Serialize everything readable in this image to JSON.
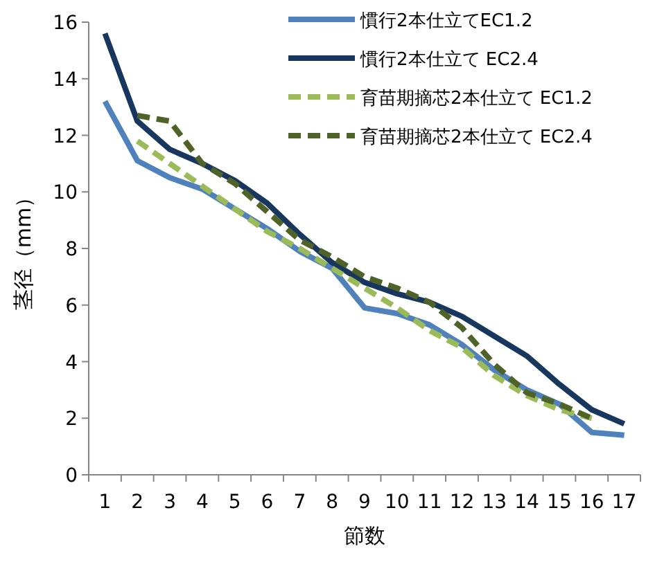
{
  "chart_data": {
    "type": "line",
    "xlabel": "節数",
    "ylabel": "茎径（mm）",
    "categories": [
      "1",
      "2",
      "3",
      "4",
      "5",
      "6",
      "7",
      "8",
      "9",
      "10",
      "11",
      "12",
      "13",
      "14",
      "15",
      "16",
      "17"
    ],
    "ylim": [
      0,
      16
    ],
    "yticks": [
      0,
      2,
      4,
      6,
      8,
      10,
      12,
      14,
      16
    ],
    "grid": false,
    "legend": "top right",
    "marker": "none",
    "series": [
      {
        "name": "慣行2本仕立てEC1.2",
        "color": "#4f81bd",
        "line_style": "solid",
        "values": [
          13.2,
          11.1,
          10.5,
          10.1,
          9.4,
          8.7,
          7.9,
          7.3,
          5.9,
          5.7,
          5.3,
          4.6,
          3.7,
          3.0,
          2.5,
          1.5,
          1.4
        ]
      },
      {
        "name": "慣行2本仕立て EC2.4",
        "color": "#17375e",
        "line_style": "solid",
        "values": [
          15.6,
          12.5,
          11.5,
          11.0,
          10.4,
          9.6,
          8.5,
          7.5,
          6.8,
          6.4,
          6.1,
          5.6,
          4.9,
          4.2,
          3.2,
          2.3,
          1.8
        ]
      },
      {
        "name": "育苗期摘芯2本仕立て EC1.2",
        "color": "#9bbb59",
        "line_style": "dashed",
        "values": [
          null,
          11.8,
          11.0,
          10.2,
          9.4,
          8.6,
          8.0,
          7.3,
          6.6,
          5.9,
          5.1,
          4.5,
          3.5,
          2.8,
          2.3,
          2.0,
          null
        ]
      },
      {
        "name": "育苗期摘芯2本仕立て EC2.4",
        "color": "#4f6228",
        "line_style": "dashed",
        "values": [
          null,
          12.7,
          12.5,
          11.0,
          10.3,
          9.3,
          8.3,
          7.7,
          7.0,
          6.6,
          6.1,
          5.2,
          3.9,
          2.9,
          2.5,
          2.0,
          null
        ]
      }
    ]
  }
}
